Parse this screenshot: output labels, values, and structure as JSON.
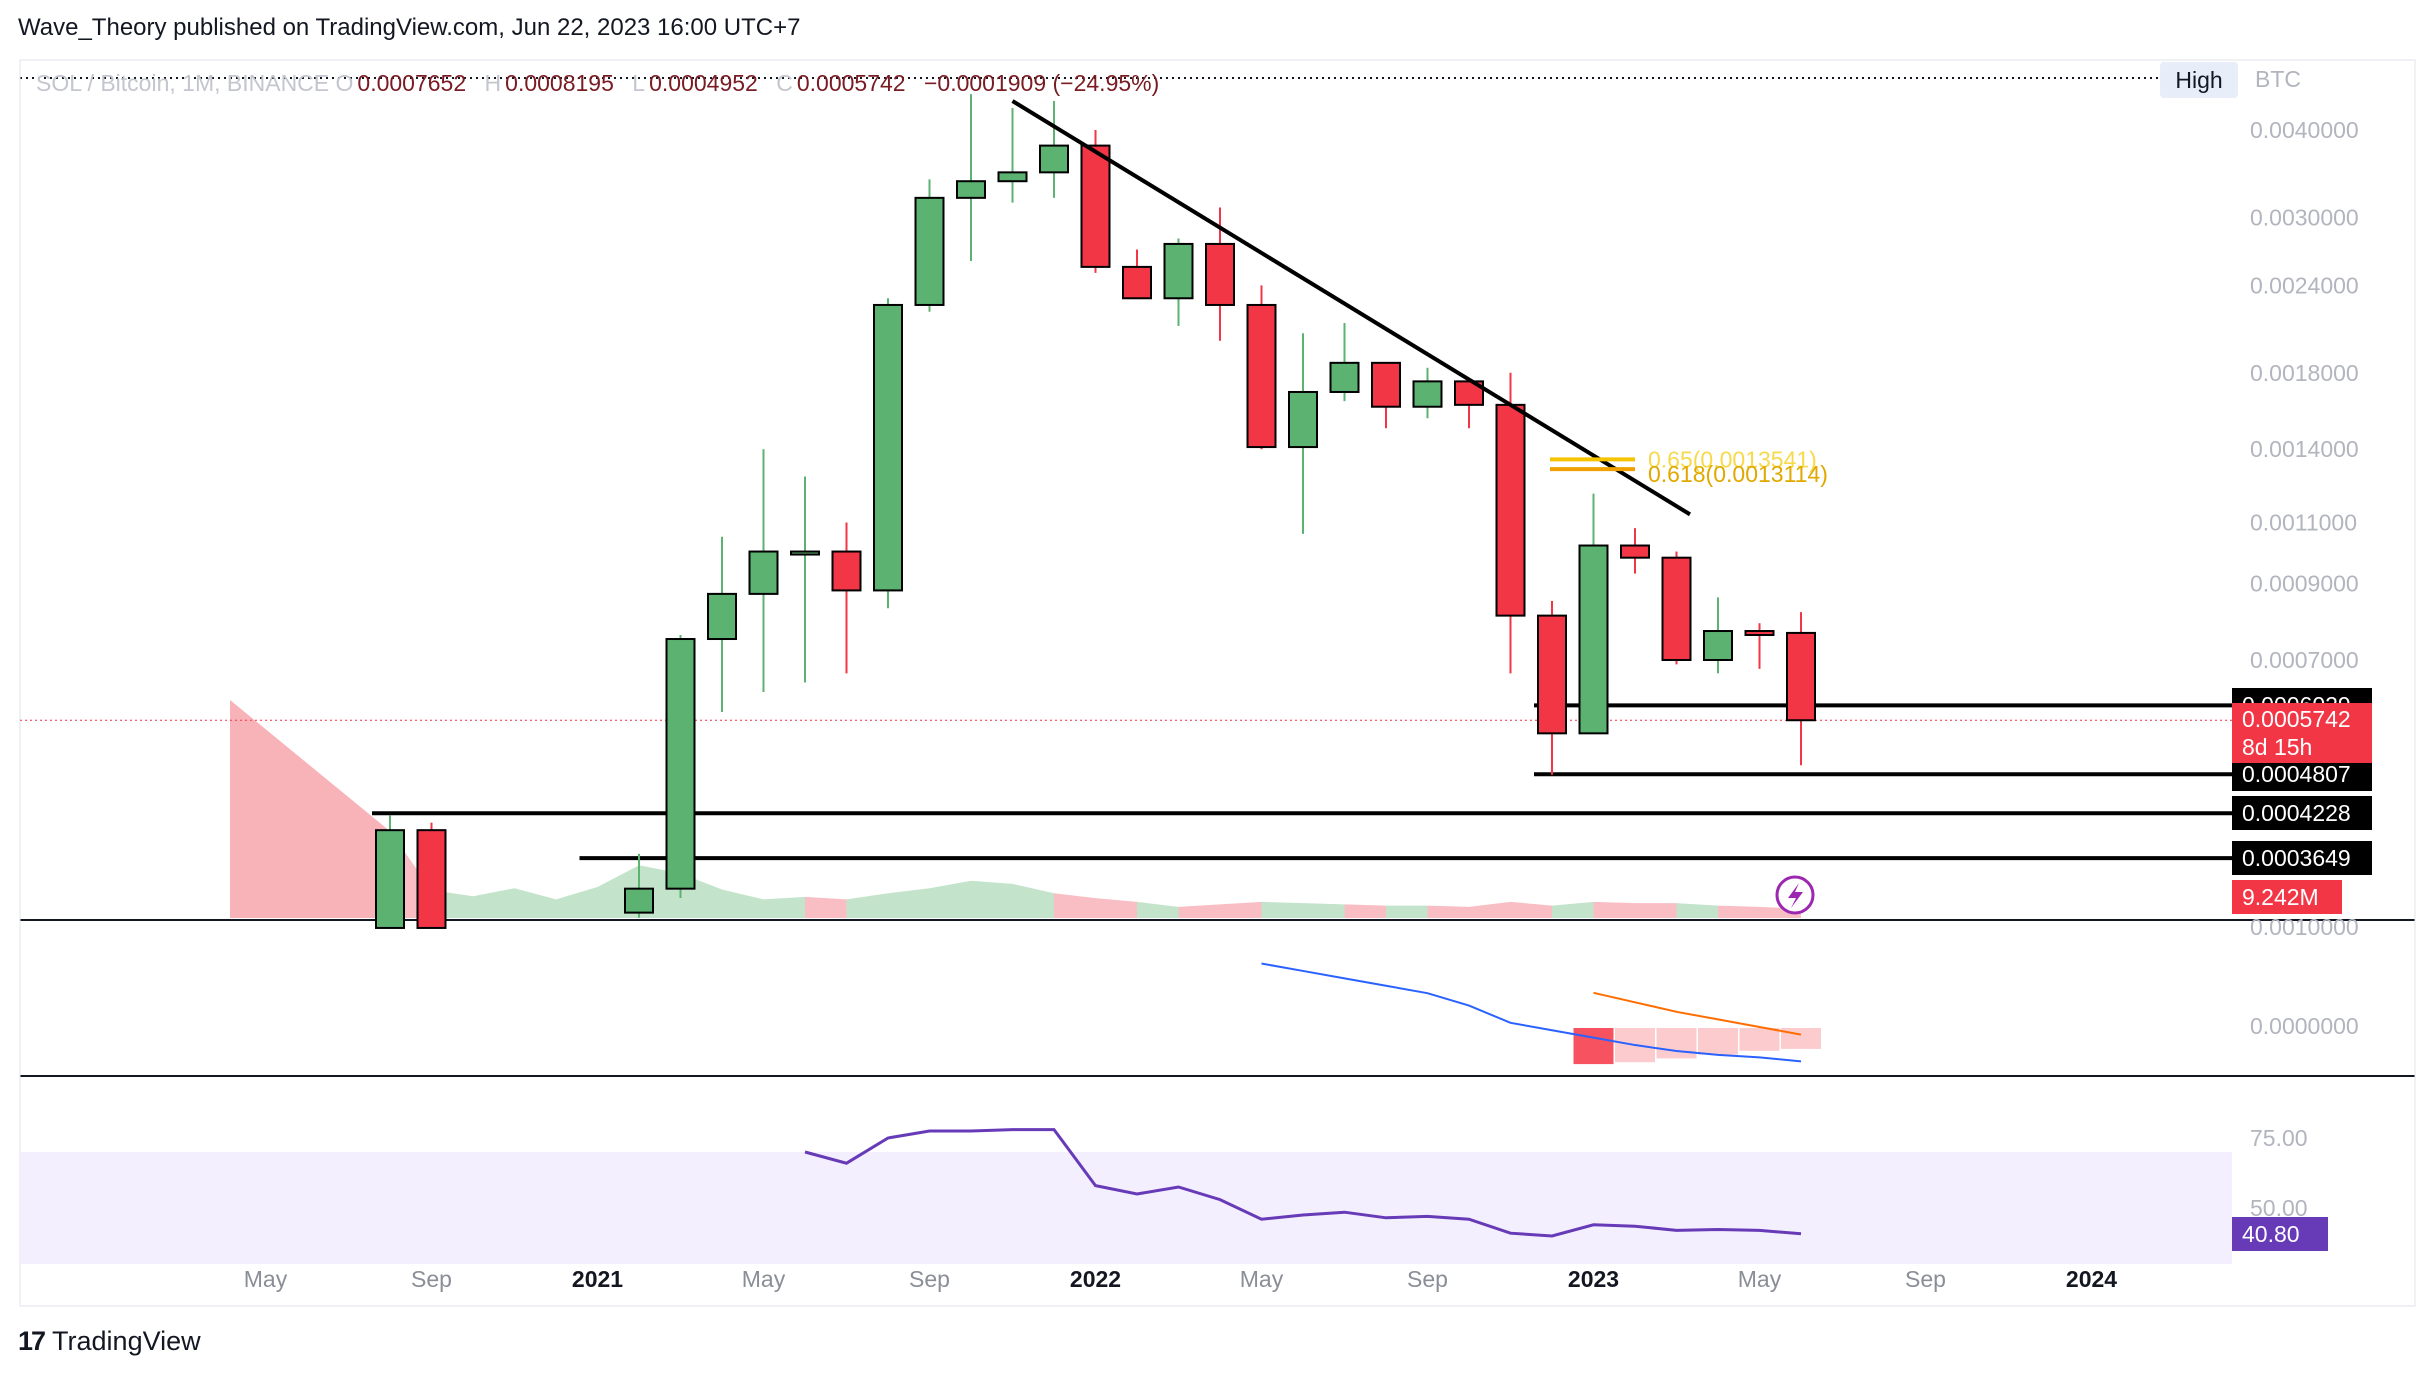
{
  "header": {
    "publisher": "Wave_Theory published on TradingView.com, Jun 22, 2023 16:00 UTC+7",
    "symbol": "SOL / Bitcoin, 1M, BINANCE",
    "open_key": "O",
    "open": "0.0007652",
    "high_key": "H",
    "high": "0.0008195",
    "low_key": "L",
    "low": "0.0004952",
    "close_key": "C",
    "close": "0.0005742",
    "change": "−0.0001909 (−24.95%)"
  },
  "toolbar": {
    "high_button": "High",
    "currency": "BTC"
  },
  "footer": {
    "brand": "TradingView",
    "brand_mark": "17"
  },
  "colors": {
    "up": "#5cb270",
    "down": "#f23645",
    "trendline": "#000000",
    "fib": "#f7c200",
    "macd": "#2962ff",
    "signal": "#ff6d00",
    "rsi": "#673ab7"
  },
  "chart_data": {
    "type": "candlestick",
    "title": "SOL / Bitcoin, 1M, BINANCE",
    "x": [
      "2020-08",
      "2020-09",
      "2020-10",
      "2020-11",
      "2020-12",
      "2021-01",
      "2021-02",
      "2021-03",
      "2021-04",
      "2021-05",
      "2021-06",
      "2021-07",
      "2021-08",
      "2021-09",
      "2021-10",
      "2021-11",
      "2021-12",
      "2022-01",
      "2022-02",
      "2022-03",
      "2022-04",
      "2022-05",
      "2022-06",
      "2022-07",
      "2022-08",
      "2022-09",
      "2022-10",
      "2022-11",
      "2022-12",
      "2023-01",
      "2023-02",
      "2023-03",
      "2023-04",
      "2023-05",
      "2023-06"
    ],
    "open": [
      0.00029,
      0.0004,
      null,
      null,
      null,
      null,
      0.000305,
      0.00033,
      0.00075,
      0.00087,
      0.001,
      0.001,
      0.00088,
      0.00225,
      0.0032,
      0.00338,
      0.00348,
      0.0038,
      0.00255,
      0.0023,
      0.00275,
      0.00225,
      0.00141,
      0.00169,
      0.00186,
      0.00161,
      0.00175,
      0.00162,
      0.00081,
      0.00055,
      0.00102,
      0.00098,
      0.0007,
      0.00077,
      0.0007652
    ],
    "high": [
      0.00042,
      0.00041,
      null,
      null,
      null,
      null,
      0.00037,
      0.00076,
      0.00105,
      0.0014,
      0.00128,
      0.0011,
      0.0023,
      0.0034,
      0.0045,
      0.0043,
      0.0044,
      0.004,
      0.0027,
      0.0028,
      0.0031,
      0.0024,
      0.00205,
      0.00212,
      0.00186,
      0.00183,
      0.00175,
      0.0018,
      0.00085,
      0.00121,
      0.00108,
      0.001,
      0.00086,
      0.00079,
      0.0008195
    ],
    "low": [
      0.00029,
      0.00029,
      null,
      null,
      null,
      null,
      0.0003,
      0.00032,
      0.00059,
      0.00063,
      0.00065,
      0.00067,
      0.00083,
      0.0022,
      0.0026,
      0.00315,
      0.0032,
      0.0025,
      0.0023,
      0.0021,
      0.002,
      0.0014,
      0.00106,
      0.00164,
      0.0015,
      0.00155,
      0.0015,
      0.00067,
      0.00048,
      0.00055,
      0.00093,
      0.00069,
      0.00067,
      0.00068,
      0.0004952
    ],
    "close": [
      0.0004,
      0.00029,
      null,
      null,
      null,
      null,
      0.00033,
      0.00075,
      0.00087,
      0.001,
      0.001,
      0.00088,
      0.00225,
      0.0032,
      0.00338,
      0.00348,
      0.0038,
      0.00255,
      0.0023,
      0.00275,
      0.00225,
      0.00141,
      0.00169,
      0.00186,
      0.00161,
      0.00175,
      0.00162,
      0.00081,
      0.00055,
      0.00102,
      0.00098,
      0.0007,
      0.00077,
      0.00076,
      0.0005742
    ],
    "volume": [
      14,
      4.5,
      3.5,
      4.8,
      3.0,
      5.0,
      8.5,
      7.2,
      4.6,
      3.0,
      3.4,
      3.0,
      4.0,
      4.8,
      6.0,
      5.5,
      4.0,
      3.2,
      2.6,
      1.8,
      2.2,
      2.6,
      2.4,
      2.2,
      2.0,
      2.0,
      1.8,
      2.6,
      2.0,
      2.6,
      2.4,
      2.4,
      2.0,
      1.8,
      1.5
    ],
    "price_axis": [
      "0.0040000",
      "0.0030000",
      "0.0024000",
      "0.0018000",
      "0.0014000",
      "0.0011000",
      "0.0009000",
      "0.0007000",
      "0.0000000",
      "0.0010000"
    ],
    "time_axis": [
      {
        "label": "May",
        "date": "2020-05",
        "year": false
      },
      {
        "label": "Sep",
        "date": "2020-09",
        "year": false
      },
      {
        "label": "2021",
        "date": "2021-01",
        "year": true
      },
      {
        "label": "May",
        "date": "2021-05",
        "year": false
      },
      {
        "label": "Sep",
        "date": "2021-09",
        "year": false
      },
      {
        "label": "2022",
        "date": "2022-01",
        "year": true
      },
      {
        "label": "May",
        "date": "2022-05",
        "year": false
      },
      {
        "label": "Sep",
        "date": "2022-09",
        "year": false
      },
      {
        "label": "2023",
        "date": "2023-01",
        "year": true
      },
      {
        "label": "May",
        "date": "2023-05",
        "year": false
      },
      {
        "label": "Sep",
        "date": "2023-09",
        "year": false
      },
      {
        "label": "2024",
        "date": "2024-01",
        "year": true
      }
    ],
    "horizontal_levels": [
      {
        "label": "0.0006029",
        "price": 0.0006029,
        "from": "2022-12"
      },
      {
        "label": "0.0004807",
        "price": 0.0004807,
        "from": "2022-12"
      },
      {
        "label": "0.0004228",
        "price": 0.0004228,
        "from": "2020-08"
      },
      {
        "label": "0.0003649",
        "price": 0.0003649,
        "from": "2021-01"
      }
    ],
    "current_price": {
      "label": "0.0005742",
      "countdown": "8d 15h"
    },
    "volume_label": "9.242M",
    "trendline": {
      "from": {
        "date": "2021-11",
        "price": 0.0044
      },
      "to": {
        "date": "2023-02",
        "price": 0.00113
      }
    },
    "fib_levels": [
      {
        "label": "0.65(0.0013541)",
        "price": 0.0013541
      },
      {
        "label": "0.618(0.0013114)",
        "price": 0.0013114
      }
    ],
    "macd": {
      "axis_label": "0.0000000",
      "macd_line": [
        {
          "date": "2022-05",
          "v": 0.9
        },
        {
          "date": "2022-06",
          "v": 0.75
        },
        {
          "date": "2022-07",
          "v": 0.6
        },
        {
          "date": "2022-08",
          "v": 0.45
        },
        {
          "date": "2022-09",
          "v": 0.3
        },
        {
          "date": "2022-10",
          "v": 0.05
        },
        {
          "date": "2022-11",
          "v": -0.3
        },
        {
          "date": "2022-12",
          "v": -0.45
        },
        {
          "date": "2023-01",
          "v": -0.6
        },
        {
          "date": "2023-02",
          "v": -0.75
        },
        {
          "date": "2023-03",
          "v": -0.87
        },
        {
          "date": "2023-04",
          "v": -0.95
        },
        {
          "date": "2023-05",
          "v": -1.0
        },
        {
          "date": "2023-06",
          "v": -1.08
        }
      ],
      "signal_line": [
        {
          "date": "2023-01",
          "v": 0.4
        },
        {
          "date": "2023-02",
          "v": 0.15
        },
        {
          "date": "2023-03",
          "v": -0.1
        },
        {
          "date": "2023-04",
          "v": -0.3
        },
        {
          "date": "2023-05",
          "v": -0.5
        },
        {
          "date": "2023-06",
          "v": -0.7
        }
      ],
      "histogram": [
        {
          "date": "2023-01",
          "v": -0.95
        },
        {
          "date": "2023-02",
          "v": -0.9
        },
        {
          "date": "2023-03",
          "v": -0.8
        },
        {
          "date": "2023-04",
          "v": -0.7
        },
        {
          "date": "2023-05",
          "v": -0.6
        },
        {
          "date": "2023-06",
          "v": -0.55
        }
      ]
    },
    "rsi": {
      "axis_labels": [
        "75.00",
        "50.00"
      ],
      "current": "40.80",
      "values": [
        {
          "date": "2021-06",
          "v": 70
        },
        {
          "date": "2021-07",
          "v": 66
        },
        {
          "date": "2021-08",
          "v": 75
        },
        {
          "date": "2021-09",
          "v": 77.5
        },
        {
          "date": "2021-10",
          "v": 77.5
        },
        {
          "date": "2021-11",
          "v": 78
        },
        {
          "date": "2021-12",
          "v": 78
        },
        {
          "date": "2022-01",
          "v": 58
        },
        {
          "date": "2022-02",
          "v": 55
        },
        {
          "date": "2022-03",
          "v": 57.5
        },
        {
          "date": "2022-04",
          "v": 53
        },
        {
          "date": "2022-05",
          "v": 46
        },
        {
          "date": "2022-06",
          "v": 47.5
        },
        {
          "date": "2022-07",
          "v": 48.5
        },
        {
          "date": "2022-08",
          "v": 46.5
        },
        {
          "date": "2022-09",
          "v": 47
        },
        {
          "date": "2022-10",
          "v": 46
        },
        {
          "date": "2022-11",
          "v": 41
        },
        {
          "date": "2022-12",
          "v": 40
        },
        {
          "date": "2023-01",
          "v": 44
        },
        {
          "date": "2023-02",
          "v": 43.5
        },
        {
          "date": "2023-03",
          "v": 42
        },
        {
          "date": "2023-04",
          "v": 42.3
        },
        {
          "date": "2023-05",
          "v": 42
        },
        {
          "date": "2023-06",
          "v": 40.8
        }
      ]
    }
  }
}
